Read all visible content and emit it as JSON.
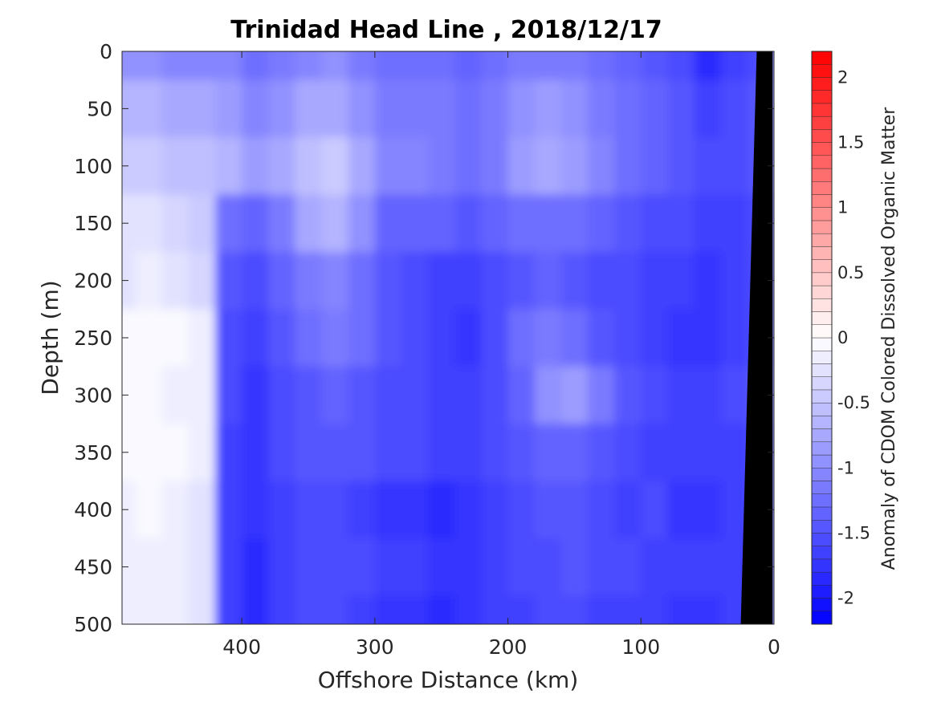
{
  "chart_data": {
    "type": "heatmap",
    "title": "Trinidad Head Line , 2018/12/17",
    "xlabel": "Offshore Distance (km)",
    "ylabel": "Depth (m)",
    "colorbar_label": "Anomaly of CDOM Colored Dissolved Organic Matter",
    "xlim": [
      490,
      0
    ],
    "ylim": [
      0,
      500
    ],
    "x_reversed": true,
    "y_reversed": true,
    "x_ticks": [
      {
        "value": 400,
        "label": "400"
      },
      {
        "value": 300,
        "label": "300"
      },
      {
        "value": 200,
        "label": "200"
      },
      {
        "value": 100,
        "label": "100"
      },
      {
        "value": 0,
        "label": "0"
      }
    ],
    "y_ticks": [
      {
        "value": 0,
        "label": "0"
      },
      {
        "value": 50,
        "label": "50"
      },
      {
        "value": 100,
        "label": "100"
      },
      {
        "value": 150,
        "label": "150"
      },
      {
        "value": 200,
        "label": "200"
      },
      {
        "value": 250,
        "label": "250"
      },
      {
        "value": 300,
        "label": "300"
      },
      {
        "value": 350,
        "label": "350"
      },
      {
        "value": 400,
        "label": "400"
      },
      {
        "value": 450,
        "label": "450"
      },
      {
        "value": 500,
        "label": "500"
      }
    ],
    "colorbar": {
      "limits": [
        -2.2,
        2.2
      ],
      "ticks": [
        {
          "value": 2,
          "label": "2"
        },
        {
          "value": 1.5,
          "label": "1.5"
        },
        {
          "value": 1,
          "label": "1"
        },
        {
          "value": 0.5,
          "label": "0.5"
        },
        {
          "value": 0,
          "label": "0"
        },
        {
          "value": -0.5,
          "label": "-0.5"
        },
        {
          "value": -1,
          "label": "-1"
        },
        {
          "value": -1.5,
          "label": "-1.5"
        },
        {
          "value": -2,
          "label": "-2"
        }
      ],
      "levels": 44,
      "color_low": "#0000ff",
      "color_mid": "#ffffff",
      "color_high": "#ff0000"
    },
    "grid": false,
    "x_coordinates_km": [
      490,
      470,
      450,
      430,
      410,
      390,
      370,
      350,
      330,
      310,
      290,
      270,
      250,
      230,
      210,
      190,
      170,
      150,
      130,
      110,
      90,
      70,
      50,
      30,
      10
    ],
    "depth_coordinates_m": [
      0,
      50,
      100,
      150,
      200,
      250,
      300,
      350,
      400,
      450,
      500
    ],
    "values": [
      [
        -1.0,
        -1.0,
        -1.1,
        -1.1,
        -1.1,
        -1.3,
        -1.2,
        -1.1,
        -1.0,
        -1.2,
        -1.3,
        -1.3,
        -1.3,
        -1.4,
        -1.3,
        -1.2,
        -1.2,
        -1.2,
        -1.3,
        -1.4,
        -1.5,
        -1.6,
        -1.9,
        -1.7,
        -1.6
      ],
      [
        -0.7,
        -0.7,
        -0.8,
        -0.8,
        -0.9,
        -1.1,
        -1.0,
        -0.8,
        -0.8,
        -1.0,
        -1.2,
        -1.2,
        -1.2,
        -1.3,
        -1.2,
        -1.0,
        -0.9,
        -1.0,
        -1.2,
        -1.3,
        -1.4,
        -1.5,
        -1.7,
        -1.6,
        -1.5
      ],
      [
        -0.5,
        -0.5,
        -0.6,
        -0.6,
        -0.7,
        -0.9,
        -0.8,
        -0.6,
        -0.5,
        -0.8,
        -1.1,
        -1.1,
        -1.2,
        -1.3,
        -1.2,
        -0.9,
        -0.8,
        -0.9,
        -1.1,
        -1.3,
        -1.4,
        -1.5,
        -1.6,
        -1.6,
        -1.5
      ],
      [
        -0.3,
        -0.3,
        -0.4,
        -0.5,
        -1.3,
        -1.4,
        -1.2,
        -0.8,
        -0.7,
        -1.0,
        -1.4,
        -1.4,
        -1.4,
        -1.5,
        -1.4,
        -1.3,
        -1.3,
        -1.3,
        -1.4,
        -1.5,
        -1.6,
        -1.6,
        -1.7,
        -1.7,
        -1.6
      ],
      [
        -0.3,
        -0.2,
        -0.3,
        -0.4,
        -1.5,
        -1.6,
        -1.4,
        -1.2,
        -1.1,
        -1.3,
        -1.5,
        -1.6,
        -1.7,
        -1.7,
        -1.6,
        -1.5,
        -1.4,
        -1.5,
        -1.6,
        -1.6,
        -1.7,
        -1.7,
        -1.8,
        -1.7,
        -1.6
      ],
      [
        -0.1,
        -0.1,
        -0.1,
        -0.2,
        -1.6,
        -1.7,
        -1.5,
        -1.3,
        -1.2,
        -1.3,
        -1.5,
        -1.6,
        -1.7,
        -1.8,
        -1.6,
        -1.3,
        -1.2,
        -1.3,
        -1.5,
        -1.6,
        -1.7,
        -1.8,
        -1.8,
        -1.7,
        -1.6
      ],
      [
        -0.1,
        -0.1,
        -0.2,
        -0.2,
        -1.6,
        -1.8,
        -1.6,
        -1.5,
        -1.4,
        -1.5,
        -1.6,
        -1.6,
        -1.7,
        -1.7,
        -1.6,
        -1.4,
        -1.0,
        -0.9,
        -1.2,
        -1.5,
        -1.6,
        -1.7,
        -1.7,
        -1.6,
        -1.5
      ],
      [
        -0.1,
        -0.1,
        -0.1,
        -0.2,
        -1.7,
        -1.8,
        -1.6,
        -1.5,
        -1.5,
        -1.5,
        -1.6,
        -1.6,
        -1.7,
        -1.7,
        -1.6,
        -1.5,
        -1.4,
        -1.4,
        -1.5,
        -1.6,
        -1.7,
        -1.7,
        -1.7,
        -1.7,
        -1.6
      ],
      [
        -0.2,
        -0.1,
        -0.2,
        -0.3,
        -1.7,
        -1.8,
        -1.7,
        -1.6,
        -1.6,
        -1.7,
        -1.8,
        -1.8,
        -1.9,
        -1.8,
        -1.7,
        -1.6,
        -1.5,
        -1.5,
        -1.6,
        -1.7,
        -1.6,
        -1.8,
        -1.8,
        -1.7,
        -1.6
      ],
      [
        -0.2,
        -0.2,
        -0.2,
        -0.3,
        -1.7,
        -1.9,
        -1.7,
        -1.6,
        -1.6,
        -1.6,
        -1.7,
        -1.7,
        -1.8,
        -1.8,
        -1.7,
        -1.6,
        -1.6,
        -1.5,
        -1.6,
        -1.6,
        -1.7,
        -1.7,
        -1.7,
        -1.7,
        -1.6
      ],
      [
        -0.2,
        -0.2,
        -0.2,
        -0.3,
        -1.7,
        -1.9,
        -1.7,
        -1.6,
        -1.6,
        -1.7,
        -1.8,
        -1.8,
        -1.9,
        -1.8,
        -1.7,
        -1.7,
        -1.6,
        -1.6,
        -1.7,
        -1.7,
        -1.7,
        -1.8,
        -1.8,
        -1.7,
        -1.6
      ]
    ],
    "seafloor_mask_polygon_km_m": [
      [
        13,
        0
      ],
      [
        1,
        0
      ],
      [
        1,
        500
      ],
      [
        25,
        500
      ]
    ]
  }
}
